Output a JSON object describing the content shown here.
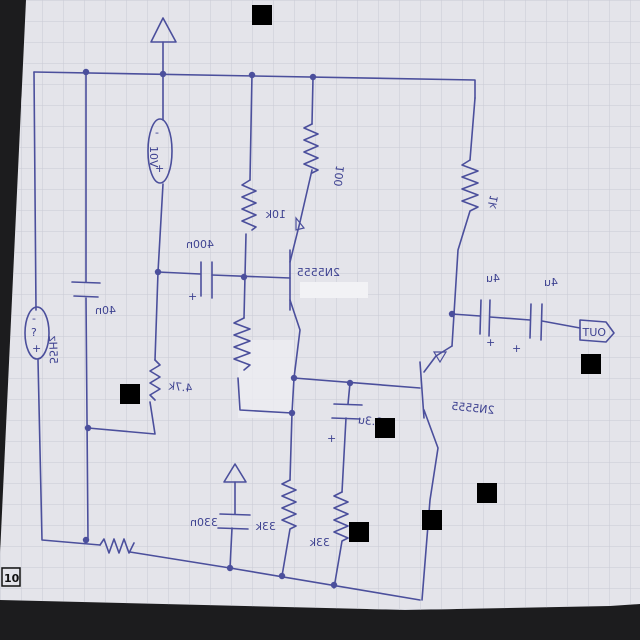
{
  "labels": {
    "r_top_mid": "100",
    "r_left_mid": "10k",
    "cap_coupling_left": "400n",
    "cap_supply": "40n",
    "q1": "2N5555",
    "q2": "2N5555",
    "r_output": "1k",
    "cap_out_1": "4u",
    "cap_out_2": "4u",
    "output": "OUT",
    "r_bias_left": "4.7k",
    "cap_emitter": "3.3u",
    "cap_bottom": "330n",
    "r_emitter_1": "33k",
    "r_emitter_2": "33k",
    "source_left": "55Hz",
    "source_top": "10V",
    "corner_mark": "10"
  },
  "colors": {
    "ink": "#4b4f9c",
    "paper": "#e4e4ea",
    "grid": "#c9cad4",
    "background": "#1c1c1e"
  }
}
